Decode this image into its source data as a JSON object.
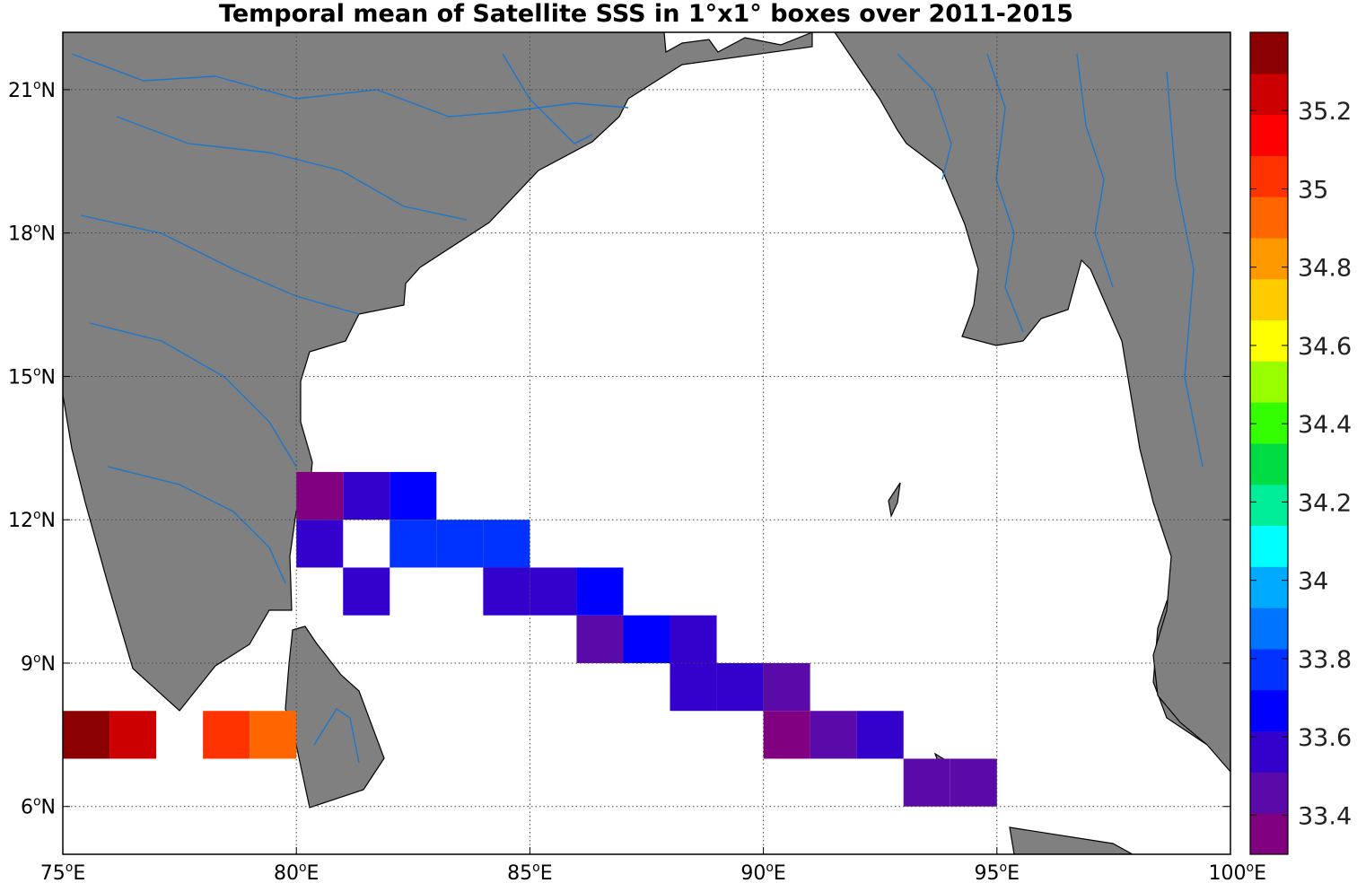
{
  "chart_data": {
    "type": "heatmap",
    "title": "Temporal mean of Satellite SSS in 1°x1° boxes over 2011-2015",
    "xlabel": "",
    "ylabel": "",
    "xlim": [
      75,
      100
    ],
    "ylim": [
      5,
      22.2
    ],
    "x_ticks": [
      {
        "value": 75,
        "label": "75",
        "suffix": "E"
      },
      {
        "value": 80,
        "label": "80",
        "suffix": "E"
      },
      {
        "value": 85,
        "label": "85",
        "suffix": "E"
      },
      {
        "value": 90,
        "label": "90",
        "suffix": "E"
      },
      {
        "value": 95,
        "label": "95",
        "suffix": "E"
      },
      {
        "value": 100,
        "label": "100",
        "suffix": "E"
      }
    ],
    "y_ticks": [
      {
        "value": 6,
        "label": "6",
        "suffix": "N"
      },
      {
        "value": 9,
        "label": "9",
        "suffix": "N"
      },
      {
        "value": 12,
        "label": "12",
        "suffix": "N"
      },
      {
        "value": 15,
        "label": "15",
        "suffix": "N"
      },
      {
        "value": 18,
        "label": "18",
        "suffix": "N"
      },
      {
        "value": 21,
        "label": "21",
        "suffix": "N"
      }
    ],
    "grid": true,
    "colorbar": {
      "min": 33.3,
      "max": 35.4,
      "step": 0.1,
      "ticks": [
        "33.4",
        "33.6",
        "33.8",
        "34",
        "34.2",
        "34.4",
        "34.6",
        "34.8",
        "35",
        "35.2"
      ],
      "colors": [
        "#800080",
        "#5a0aa8",
        "#3300cc",
        "#0000ff",
        "#0033ff",
        "#0073ff",
        "#00aaff",
        "#00ffff",
        "#00ee99",
        "#00dd44",
        "#33ff00",
        "#99ff00",
        "#ffff00",
        "#ffcc00",
        "#ff9900",
        "#ff6600",
        "#ff3300",
        "#ff0000",
        "#cc0000",
        "#8b0000"
      ]
    },
    "cells": [
      {
        "lon": 75,
        "lat": 7,
        "value": 35.35
      },
      {
        "lon": 76,
        "lat": 7,
        "value": 35.15
      },
      {
        "lon": 78,
        "lat": 7,
        "value": 34.95
      },
      {
        "lon": 79,
        "lat": 7,
        "value": 34.85
      },
      {
        "lon": 80,
        "lat": 12,
        "value": 33.35
      },
      {
        "lon": 81,
        "lat": 12,
        "value": 33.55
      },
      {
        "lon": 82,
        "lat": 12,
        "value": 33.65
      },
      {
        "lon": 80,
        "lat": 11,
        "value": 33.55
      },
      {
        "lon": 82,
        "lat": 11,
        "value": 33.75
      },
      {
        "lon": 83,
        "lat": 11,
        "value": 33.75
      },
      {
        "lon": 84,
        "lat": 11,
        "value": 33.75
      },
      {
        "lon": 81,
        "lat": 10,
        "value": 33.55
      },
      {
        "lon": 84,
        "lat": 10,
        "value": 33.55
      },
      {
        "lon": 85,
        "lat": 10,
        "value": 33.55
      },
      {
        "lon": 86,
        "lat": 10,
        "value": 33.65
      },
      {
        "lon": 86,
        "lat": 9,
        "value": 33.45
      },
      {
        "lon": 87,
        "lat": 9,
        "value": 33.65
      },
      {
        "lon": 88,
        "lat": 9,
        "value": 33.55
      },
      {
        "lon": 88,
        "lat": 8,
        "value": 33.55
      },
      {
        "lon": 89,
        "lat": 8,
        "value": 33.55
      },
      {
        "lon": 90,
        "lat": 8,
        "value": 33.45
      },
      {
        "lon": 90,
        "lat": 7,
        "value": 33.35
      },
      {
        "lon": 91,
        "lat": 7,
        "value": 33.45
      },
      {
        "lon": 92,
        "lat": 7,
        "value": 33.55
      },
      {
        "lon": 93,
        "lat": 6,
        "value": 33.45
      },
      {
        "lon": 94,
        "lat": 6,
        "value": 33.45
      }
    ]
  }
}
